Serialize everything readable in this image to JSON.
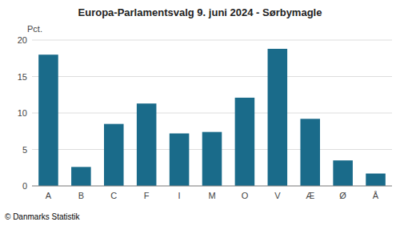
{
  "chart_data": {
    "type": "bar",
    "title": "Europa-Parlamentsvalg 9. juni 2024 - Sørbymagle",
    "ylabel": "Pct.",
    "annotations": [
      "© Danmarks Statistik"
    ],
    "categories": [
      "A",
      "B",
      "C",
      "F",
      "I",
      "M",
      "O",
      "V",
      "Æ",
      "Ø",
      "Å"
    ],
    "values": [
      18.0,
      2.6,
      8.5,
      11.3,
      7.2,
      7.4,
      12.1,
      18.8,
      9.2,
      3.5,
      1.7
    ],
    "color": "#1a6b8a",
    "ylim": [
      0,
      20
    ],
    "yticks": [
      0,
      5,
      10,
      15,
      20
    ],
    "grid": true
  }
}
